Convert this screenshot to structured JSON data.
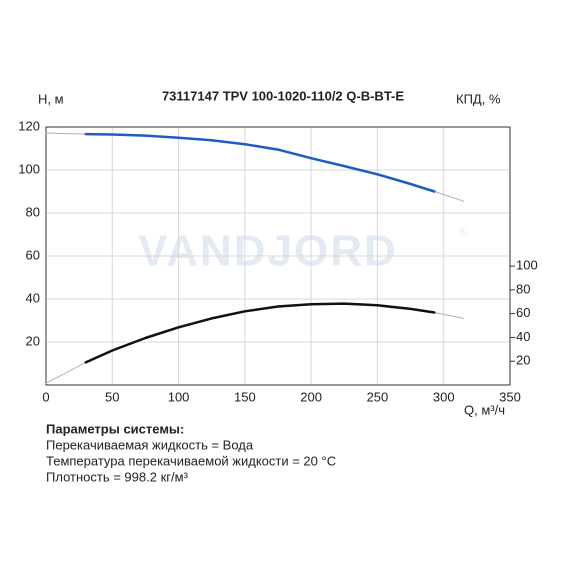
{
  "chart_data": {
    "type": "line",
    "title": "73117147 TPV 100-1020-110/2 Q-B-BT-E",
    "ylabel": "H, м",
    "y2label": "КПД, %",
    "xlabel": "Q, м³/ч",
    "watermark": "VANDJORD",
    "watermark_mark": "®",
    "xlim": [
      0,
      350
    ],
    "xticks": [
      0,
      50,
      100,
      150,
      200,
      250,
      300,
      350
    ],
    "ylim": [
      0,
      120
    ],
    "yticks": [
      20,
      40,
      60,
      80,
      100,
      120
    ],
    "y2lim": [
      0,
      217
    ],
    "y2ticks": [
      20,
      40,
      60,
      80,
      100
    ],
    "grid": true,
    "series": [
      {
        "color": "#b0b0b0",
        "width": 1,
        "x": [
          0,
          30,
          50,
          75,
          100,
          125,
          150,
          175,
          200,
          225,
          250,
          275,
          293,
          315
        ],
        "values": [
          117.2,
          116.7,
          116.5,
          116,
          115,
          113.8,
          112,
          109.5,
          105.5,
          101.8,
          98,
          93.5,
          90,
          85.5
        ]
      },
      {
        "color": "#1f5bc4",
        "width": 2.5,
        "x": [
          30,
          50,
          75,
          100,
          125,
          150,
          175,
          200,
          225,
          250,
          275,
          293
        ],
        "values": [
          116.7,
          116.5,
          116,
          115,
          113.8,
          112,
          109.5,
          105.5,
          101.8,
          98,
          93.5,
          90
        ]
      },
      {
        "color": "#b0b0b0",
        "width": 1,
        "axis": "y2",
        "x": [
          0,
          30,
          50,
          75,
          100,
          125,
          150,
          175,
          200,
          225,
          250,
          275,
          293,
          315
        ],
        "values": [
          1.5,
          19,
          29,
          39.5,
          48.5,
          56,
          62,
          66,
          68,
          68.5,
          67,
          64,
          61,
          56
        ]
      },
      {
        "color": "#111111",
        "width": 2.5,
        "axis": "y2",
        "x": [
          30,
          50,
          75,
          100,
          125,
          150,
          175,
          200,
          225,
          250,
          275,
          293
        ],
        "values": [
          19,
          29,
          39.5,
          48.5,
          56,
          62,
          66,
          68,
          68.5,
          67,
          64,
          61
        ]
      }
    ]
  },
  "info": {
    "title": "Параметры системы:",
    "lines": [
      "Перекачиваемая жидкость = Вода",
      "Температура перекачиваемой жидкости = 20 °C",
      "Плотность = 998.2 кг/м³"
    ]
  }
}
